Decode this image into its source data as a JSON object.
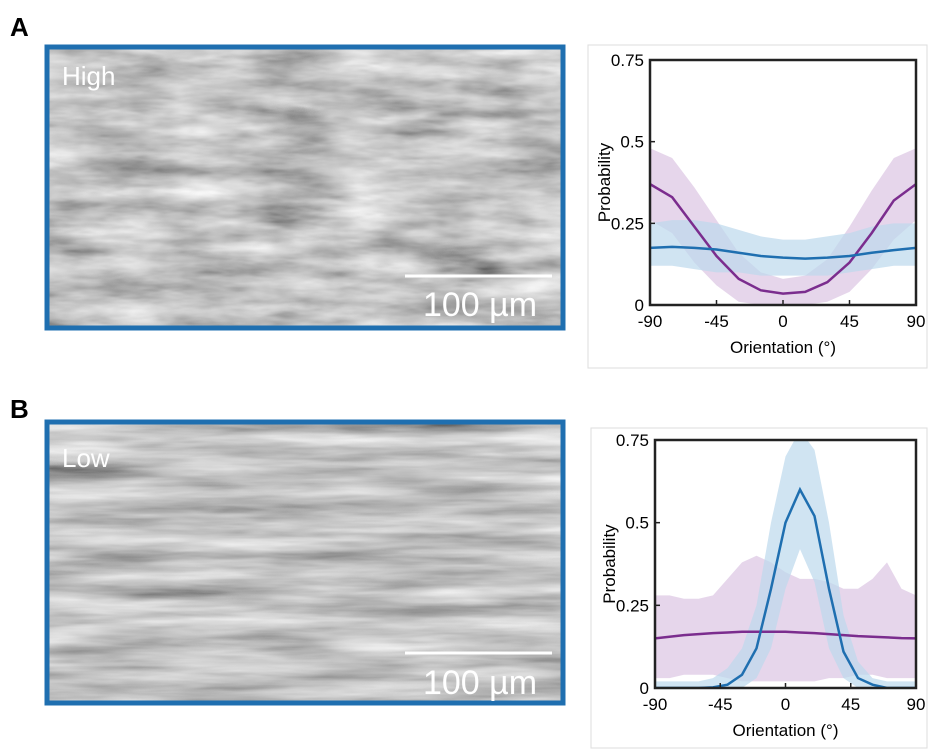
{
  "panels": [
    {
      "label": "A",
      "image_label": "High",
      "scale_bar": "100 µm"
    },
    {
      "label": "B",
      "image_label": "Low",
      "scale_bar": "100 µm"
    }
  ],
  "chart_data": [
    {
      "type": "line",
      "xlabel": "Orientation (°)",
      "ylabel": "Probability",
      "x": [
        -90,
        -75,
        -60,
        -45,
        -30,
        -15,
        0,
        15,
        30,
        45,
        60,
        75,
        90
      ],
      "xlim": [
        -90,
        90
      ],
      "xticks": [
        -90,
        -45,
        0,
        45,
        90
      ],
      "ylim": [
        0,
        0.75
      ],
      "yticks": [
        0,
        0.25,
        0.5,
        0.75
      ],
      "series": [
        {
          "color": "#7b2d8e",
          "band_color": "#dcc5e3",
          "values": [
            0.37,
            0.33,
            0.24,
            0.15,
            0.08,
            0.045,
            0.035,
            0.04,
            0.07,
            0.13,
            0.22,
            0.32,
            0.37
          ],
          "upper": [
            0.48,
            0.45,
            0.36,
            0.26,
            0.16,
            0.1,
            0.08,
            0.09,
            0.14,
            0.24,
            0.35,
            0.45,
            0.48
          ],
          "lower": [
            0.26,
            0.22,
            0.13,
            0.06,
            0.01,
            0,
            0,
            0,
            0.01,
            0.04,
            0.11,
            0.2,
            0.26
          ]
        },
        {
          "color": "#1f6fb0",
          "band_color": "#bcd8ec",
          "values": [
            0.175,
            0.178,
            0.175,
            0.17,
            0.16,
            0.15,
            0.145,
            0.142,
            0.145,
            0.15,
            0.16,
            0.168,
            0.175
          ],
          "upper": [
            0.25,
            0.26,
            0.26,
            0.25,
            0.23,
            0.21,
            0.2,
            0.2,
            0.21,
            0.22,
            0.24,
            0.25,
            0.25
          ],
          "lower": [
            0.12,
            0.12,
            0.11,
            0.1,
            0.1,
            0.09,
            0.09,
            0.09,
            0.09,
            0.1,
            0.11,
            0.12,
            0.12
          ]
        }
      ]
    },
    {
      "type": "line",
      "xlabel": "Orientation (°)",
      "ylabel": "Probability",
      "x": [
        -90,
        -80,
        -70,
        -60,
        -50,
        -40,
        -30,
        -20,
        -10,
        0,
        10,
        20,
        30,
        40,
        50,
        60,
        70,
        80,
        90
      ],
      "xlim": [
        -90,
        90
      ],
      "xticks": [
        -90,
        -45,
        0,
        45,
        90
      ],
      "ylim": [
        0,
        0.75
      ],
      "yticks": [
        0,
        0.25,
        0.5,
        0.75
      ],
      "series": [
        {
          "color": "#7b2d8e",
          "band_color": "#dcc5e3",
          "values": [
            0.15,
            0.155,
            0.16,
            0.163,
            0.166,
            0.168,
            0.17,
            0.17,
            0.17,
            0.17,
            0.168,
            0.166,
            0.163,
            0.16,
            0.157,
            0.155,
            0.153,
            0.151,
            0.15
          ],
          "upper": [
            0.28,
            0.28,
            0.27,
            0.27,
            0.28,
            0.33,
            0.38,
            0.4,
            0.38,
            0.35,
            0.33,
            0.33,
            0.32,
            0.3,
            0.3,
            0.33,
            0.38,
            0.3,
            0.28
          ],
          "lower": [
            0.03,
            0.03,
            0.04,
            0.04,
            0.04,
            0.03,
            0.02,
            0.02,
            0.02,
            0.02,
            0.02,
            0.02,
            0.03,
            0.03,
            0.04,
            0.04,
            0.03,
            0.03,
            0.03
          ]
        },
        {
          "color": "#1f6fb0",
          "band_color": "#bcd8ec",
          "values": [
            0,
            0,
            0,
            0,
            0.002,
            0.01,
            0.04,
            0.12,
            0.3,
            0.5,
            0.6,
            0.52,
            0.3,
            0.11,
            0.03,
            0.01,
            0,
            0,
            0
          ],
          "upper": [
            0.02,
            0.02,
            0.02,
            0.02,
            0.03,
            0.06,
            0.12,
            0.25,
            0.5,
            0.7,
            0.78,
            0.72,
            0.5,
            0.22,
            0.08,
            0.03,
            0.02,
            0.02,
            0.02
          ],
          "lower": [
            0,
            0,
            0,
            0,
            0,
            0,
            0,
            0.03,
            0.12,
            0.3,
            0.42,
            0.32,
            0.12,
            0.03,
            0,
            0,
            0,
            0,
            0
          ]
        }
      ]
    }
  ]
}
